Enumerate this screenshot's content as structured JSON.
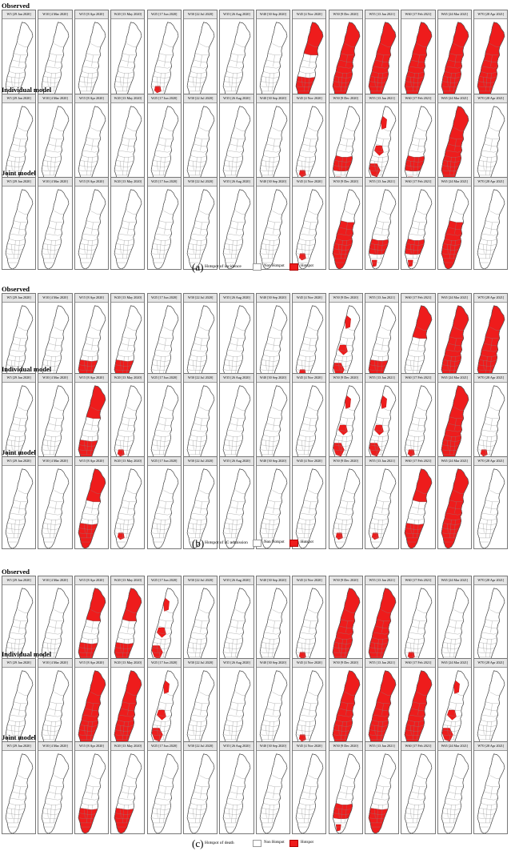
{
  "colors": {
    "hotspot": "#ee1c1c",
    "non_hotspot": "#ffffff",
    "outline": "#555555"
  },
  "panel_labels": [
    "W5 [29 Jan 2020]",
    "W10 [4 Mar 2020]",
    "W15 [8 Apr 2020]",
    "W20 [13 May 2020]",
    "W25 [17 Jun 2020]",
    "W30 [22 Jul 2020]",
    "W35 [26 Aug 2020]",
    "W40 [30 Sep 2020]",
    "W45 [4 Nov 2020]",
    "W50 [9 Dec 2020]",
    "W55 [13 Jan 2021]",
    "W60 [17 Feb 2021]",
    "W65 [24 Mar 2021]",
    "W70 [28 Apr 2021]"
  ],
  "sections": [
    {
      "letter": "(a)",
      "legend_title": "Hotspot of incidence",
      "legend_non": "Non Hotspot",
      "legend_hot": "Hotspot",
      "rows": [
        {
          "title": "Observed",
          "hotspots": [
            "none",
            "none",
            "none",
            "none",
            "smallsouth",
            "none",
            "none",
            "none",
            "northsouth",
            "full",
            "full",
            "full",
            "full",
            "full"
          ]
        },
        {
          "title": "Individual model",
          "hotspots": [
            "none",
            "none",
            "none",
            "none",
            "none",
            "none",
            "none",
            "none",
            "smallsouth",
            "midsouth",
            "partial",
            "midsouth",
            "full",
            "none"
          ]
        },
        {
          "title": "Joint model",
          "hotspots": [
            "none",
            "none",
            "none",
            "none",
            "none",
            "none",
            "none",
            "none",
            "smallsouth",
            "fullsouth",
            "midsouth",
            "midsouth",
            "fullsouth",
            "none"
          ]
        }
      ]
    },
    {
      "letter": "(b)",
      "legend_title": "Hotspot of IC admission",
      "legend_non": "Non Hotspot",
      "legend_hot": "Hotspot",
      "rows": [
        {
          "title": "Observed",
          "hotspots": [
            "none",
            "none",
            "south",
            "south",
            "none",
            "none",
            "none",
            "none",
            "smallsouth",
            "partial",
            "south",
            "north",
            "full",
            "full"
          ]
        },
        {
          "title": "Individual model",
          "hotspots": [
            "none",
            "none",
            "northsouth",
            "smallsouth",
            "none",
            "none",
            "none",
            "none",
            "none",
            "partial",
            "partial",
            "smallsouth",
            "full",
            "smallsouth"
          ]
        },
        {
          "title": "Joint model",
          "hotspots": [
            "none",
            "none",
            "northsouth",
            "smallsouth",
            "none",
            "none",
            "none",
            "none",
            "none",
            "smallsouth",
            "smallsouth",
            "northsouth",
            "full",
            "none"
          ]
        }
      ]
    },
    {
      "letter": "(c)",
      "legend_title": "Hotspot of death",
      "legend_non": "Non Hotspot",
      "legend_hot": "Hotspot",
      "rows": [
        {
          "title": "Observed",
          "hotspots": [
            "none",
            "none",
            "northsouth",
            "northsouth",
            "partial",
            "none",
            "none",
            "none",
            "smallsouth",
            "full",
            "full",
            "smallsouth",
            "none",
            "none"
          ]
        },
        {
          "title": "Individual model",
          "hotspots": [
            "none",
            "none",
            "full",
            "full",
            "partial",
            "none",
            "none",
            "none",
            "smallsouth",
            "full",
            "full",
            "full",
            "partial",
            "none"
          ]
        },
        {
          "title": "Joint model",
          "hotspots": [
            "none",
            "none",
            "south",
            "south",
            "none",
            "none",
            "none",
            "none",
            "none",
            "midsouth",
            "south",
            "none",
            "none",
            "none"
          ]
        }
      ]
    }
  ]
}
